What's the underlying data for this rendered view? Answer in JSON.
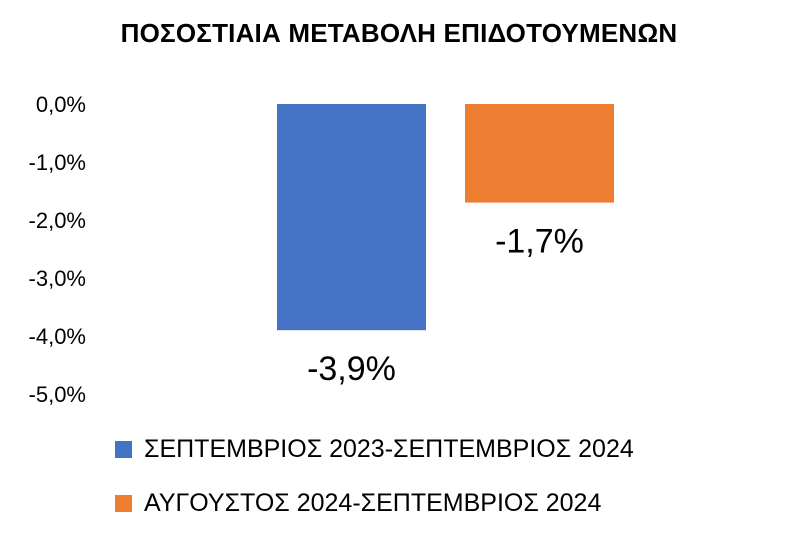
{
  "chart_data": {
    "type": "bar",
    "title": "ΠΟΣΟΣΤΙΑΙΑ ΜΕΤΑΒΟΛΗ ΕΠΙΔΟΤΟΥΜΕΝΩΝ",
    "xlabel": "",
    "ylabel": "",
    "ylim": [
      -5.0,
      0.0
    ],
    "yticks": [
      0.0,
      -1.0,
      -2.0,
      -3.0,
      -4.0,
      -5.0
    ],
    "ytick_labels": [
      "0,0%",
      "-1,0%",
      "-2,0%",
      "-3,0%",
      "-4,0%",
      "-5,0%"
    ],
    "grid": false,
    "legend_position": "bottom",
    "series": [
      {
        "name": "ΣΕΠΤΕΜΒΡΙΟΣ 2023-ΣΕΠΤΕΜΒΡΙΟΣ 2024",
        "values": [
          -3.9
        ],
        "label": "-3,9%",
        "color": "#4472C4"
      },
      {
        "name": "ΑΥΓΟΥΣΤΟΣ 2024-ΣΕΠΤΕΜΒΡΙΟΣ 2024",
        "values": [
          -1.7
        ],
        "label": "-1,7%",
        "color": "#ED7D31"
      }
    ]
  }
}
